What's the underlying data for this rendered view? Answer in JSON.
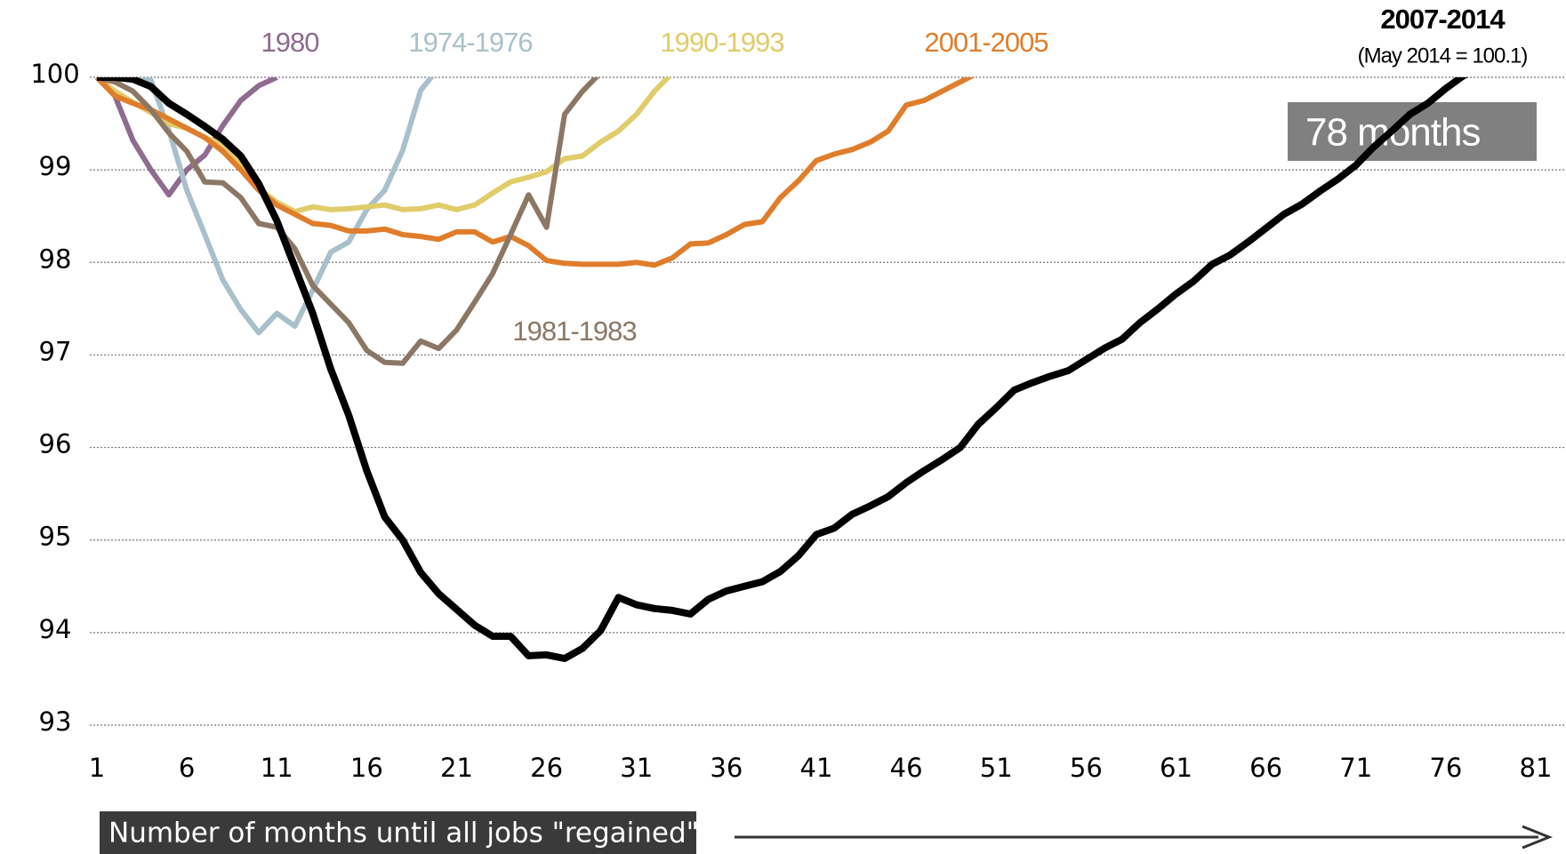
{
  "chart_data": {
    "type": "line",
    "xlabel": "Number of months until all jobs \"regained\"",
    "annotations": {
      "box": "78 months",
      "note": "(May 2014 = 100.1)"
    },
    "x": [
      1,
      2,
      3,
      4,
      5,
      6,
      7,
      8,
      9,
      10,
      11,
      12,
      13,
      14,
      15,
      16,
      17,
      18,
      19,
      20,
      21,
      22,
      23,
      24,
      25,
      26,
      27,
      28,
      29,
      30,
      31,
      32,
      33,
      34,
      35,
      36,
      37,
      38,
      39,
      40,
      41,
      42,
      43,
      44,
      45,
      46,
      47,
      48,
      49,
      50,
      51,
      52,
      53,
      54,
      55,
      56,
      57,
      58,
      59,
      60,
      61,
      62,
      63,
      64,
      65,
      66,
      67,
      68,
      69,
      70,
      71,
      72,
      73,
      74,
      75,
      76,
      77,
      78
    ],
    "xlim": [
      1,
      81
    ],
    "xticks": [
      1,
      6,
      11,
      16,
      21,
      26,
      31,
      36,
      41,
      46,
      51,
      56,
      61,
      66,
      71,
      76,
      81
    ],
    "ylim": [
      93,
      100
    ],
    "yticks": [
      93,
      94,
      95,
      96,
      97,
      98,
      99,
      100
    ],
    "grid": true,
    "series": [
      {
        "name": "1980",
        "color": "#8e6b8f",
        "values": [
          100,
          99.8,
          99.32,
          99.0,
          98.73,
          99.0,
          99.16,
          99.48,
          99.75,
          99.91,
          100,
          null,
          null,
          null,
          null,
          null,
          null,
          null,
          null,
          null,
          null,
          null,
          null,
          null,
          null,
          null,
          null,
          null,
          null,
          null,
          null,
          null,
          null,
          null,
          null,
          null,
          null,
          null,
          null,
          null,
          null,
          null,
          null,
          null,
          null,
          null,
          null,
          null,
          null,
          null,
          null,
          null,
          null,
          null,
          null,
          null,
          null,
          null,
          null,
          null,
          null,
          null,
          null,
          null,
          null,
          null,
          null,
          null,
          null,
          null,
          null,
          null,
          null,
          null,
          null,
          null,
          null,
          null
        ]
      },
      {
        "name": "1974-1976",
        "color": "#a8c0cb",
        "values": [
          100,
          100,
          100,
          99.97,
          99.43,
          98.78,
          98.3,
          97.81,
          97.49,
          97.24,
          97.45,
          97.31,
          97.7,
          98.11,
          98.22,
          98.57,
          98.78,
          99.21,
          99.86,
          100.1,
          null,
          null,
          null,
          null,
          null,
          null,
          null,
          null,
          null,
          null,
          null,
          null,
          null,
          null,
          null,
          null,
          null,
          null,
          null,
          null,
          null,
          null,
          null,
          null,
          null,
          null,
          null,
          null,
          null,
          null,
          null,
          null,
          null,
          null,
          null,
          null,
          null,
          null,
          null,
          null,
          null,
          null,
          null,
          null,
          null,
          null,
          null,
          null,
          null,
          null,
          null,
          null,
          null,
          null,
          null,
          null,
          null,
          null
        ]
      },
      {
        "name": "1990-1993",
        "color": "#e0cc69",
        "values": [
          100,
          99.85,
          99.73,
          99.62,
          99.5,
          99.45,
          99.35,
          99.27,
          99.05,
          98.8,
          98.65,
          98.55,
          98.6,
          98.57,
          98.58,
          98.6,
          98.62,
          98.57,
          98.58,
          98.62,
          98.57,
          98.62,
          98.75,
          98.87,
          98.92,
          98.98,
          99.12,
          99.15,
          99.3,
          99.42,
          99.6,
          99.85,
          100.05,
          null,
          null,
          null,
          null,
          null,
          null,
          null,
          null,
          null,
          null,
          null,
          null,
          null,
          null,
          null,
          null,
          null,
          null,
          null,
          null,
          null,
          null,
          null,
          null,
          null,
          null,
          null,
          null,
          null,
          null,
          null,
          null,
          null,
          null,
          null,
          null,
          null,
          null,
          null,
          null,
          null,
          null,
          null,
          null,
          null
        ]
      },
      {
        "name": "2001-2005",
        "color": "#e07d2b",
        "values": [
          100,
          99.8,
          99.72,
          99.65,
          99.55,
          99.45,
          99.35,
          99.2,
          99.0,
          98.78,
          98.62,
          98.52,
          98.42,
          98.4,
          98.34,
          98.34,
          98.36,
          98.3,
          98.28,
          98.25,
          98.33,
          98.33,
          98.22,
          98.28,
          98.18,
          98.02,
          97.99,
          97.98,
          97.98,
          97.98,
          98.0,
          97.97,
          98.05,
          98.2,
          98.21,
          98.3,
          98.41,
          98.44,
          98.7,
          98.88,
          99.1,
          99.17,
          99.22,
          99.3,
          99.42,
          99.7,
          99.75,
          99.85,
          99.95,
          100.05,
          null,
          null,
          null,
          null,
          null,
          null,
          null,
          null,
          null,
          null,
          null,
          null,
          null,
          null,
          null,
          null,
          null,
          null,
          null,
          null,
          null,
          null,
          null,
          null,
          null,
          null,
          null,
          null
        ]
      },
      {
        "name": "1981-1983",
        "color": "#8c7765",
        "values": [
          100,
          99.95,
          99.85,
          99.65,
          99.4,
          99.2,
          98.87,
          98.86,
          98.7,
          98.42,
          98.38,
          98.15,
          97.75,
          97.55,
          97.35,
          97.05,
          96.92,
          96.91,
          97.15,
          97.07,
          97.27,
          97.57,
          97.88,
          98.3,
          98.73,
          98.38,
          99.6,
          99.85,
          100.05,
          null,
          null,
          null,
          null,
          null,
          null,
          null,
          null,
          null,
          null,
          null,
          null,
          null,
          null,
          null,
          null,
          null,
          null,
          null,
          null,
          null,
          null,
          null,
          null,
          null,
          null,
          null,
          null,
          null,
          null,
          null,
          null,
          null,
          null,
          null,
          null,
          null,
          null,
          null,
          null,
          null,
          null,
          null,
          null,
          null,
          null,
          null,
          null,
          null
        ]
      },
      {
        "name": "2007-2014",
        "color": "#000000",
        "values": [
          100,
          100,
          99.98,
          99.9,
          99.72,
          99.6,
          99.47,
          99.33,
          99.15,
          98.85,
          98.45,
          97.95,
          97.45,
          96.85,
          96.35,
          95.75,
          95.25,
          95.0,
          94.65,
          94.42,
          94.25,
          94.08,
          93.96,
          93.96,
          93.75,
          93.76,
          93.72,
          93.83,
          94.02,
          94.38,
          94.3,
          94.26,
          94.24,
          94.2,
          94.36,
          94.45,
          94.5,
          94.55,
          94.66,
          94.83,
          95.06,
          95.13,
          95.28,
          95.37,
          95.47,
          95.62,
          95.75,
          95.87,
          96.0,
          96.25,
          96.43,
          96.62,
          96.7,
          96.77,
          96.83,
          96.95,
          97.07,
          97.17,
          97.35,
          97.5,
          97.66,
          97.8,
          97.98,
          98.08,
          98.22,
          98.37,
          98.52,
          98.63,
          98.77,
          98.9,
          99.05,
          99.25,
          99.42,
          99.6,
          99.72,
          99.88,
          100.02,
          100.1
        ]
      }
    ]
  }
}
